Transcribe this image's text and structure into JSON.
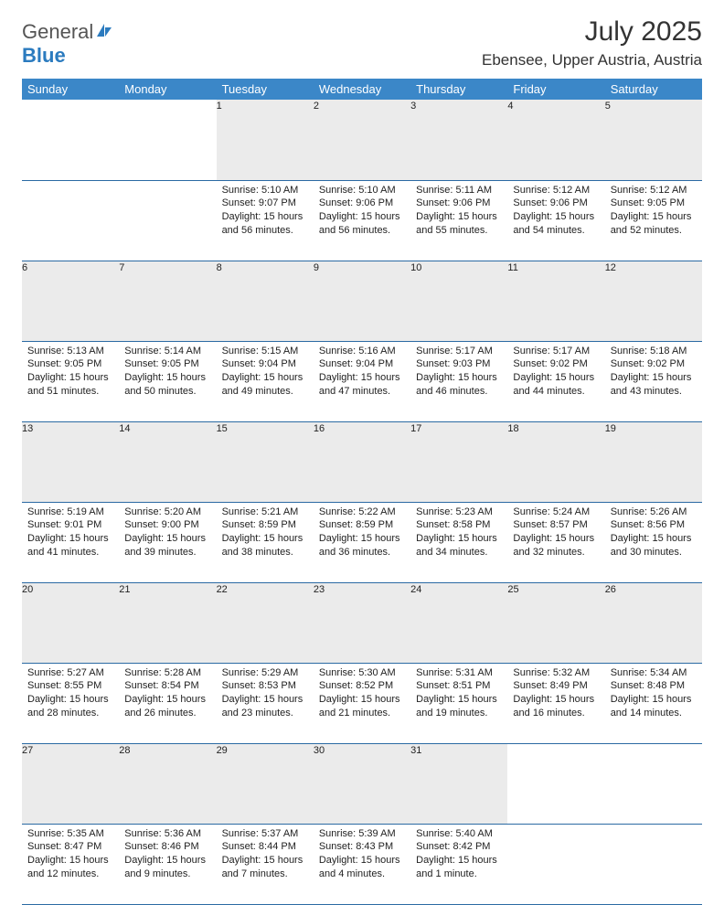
{
  "brand": {
    "name1": "General",
    "name2": "Blue"
  },
  "title": "July 2025",
  "location": "Ebensee, Upper Austria, Austria",
  "colors": {
    "header_bg": "#3b87c8",
    "header_text": "#ffffff",
    "daynum_bg": "#ebebeb",
    "rule": "#2b6aa3",
    "brand_gray": "#555555",
    "brand_blue": "#2b7bbf"
  },
  "dayNames": [
    "Sunday",
    "Monday",
    "Tuesday",
    "Wednesday",
    "Thursday",
    "Friday",
    "Saturday"
  ],
  "weeks": [
    [
      null,
      null,
      {
        "n": "1",
        "sr": "5:10 AM",
        "ss": "9:07 PM",
        "dl": "15 hours and 56 minutes."
      },
      {
        "n": "2",
        "sr": "5:10 AM",
        "ss": "9:06 PM",
        "dl": "15 hours and 56 minutes."
      },
      {
        "n": "3",
        "sr": "5:11 AM",
        "ss": "9:06 PM",
        "dl": "15 hours and 55 minutes."
      },
      {
        "n": "4",
        "sr": "5:12 AM",
        "ss": "9:06 PM",
        "dl": "15 hours and 54 minutes."
      },
      {
        "n": "5",
        "sr": "5:12 AM",
        "ss": "9:05 PM",
        "dl": "15 hours and 52 minutes."
      }
    ],
    [
      {
        "n": "6",
        "sr": "5:13 AM",
        "ss": "9:05 PM",
        "dl": "15 hours and 51 minutes."
      },
      {
        "n": "7",
        "sr": "5:14 AM",
        "ss": "9:05 PM",
        "dl": "15 hours and 50 minutes."
      },
      {
        "n": "8",
        "sr": "5:15 AM",
        "ss": "9:04 PM",
        "dl": "15 hours and 49 minutes."
      },
      {
        "n": "9",
        "sr": "5:16 AM",
        "ss": "9:04 PM",
        "dl": "15 hours and 47 minutes."
      },
      {
        "n": "10",
        "sr": "5:17 AM",
        "ss": "9:03 PM",
        "dl": "15 hours and 46 minutes."
      },
      {
        "n": "11",
        "sr": "5:17 AM",
        "ss": "9:02 PM",
        "dl": "15 hours and 44 minutes."
      },
      {
        "n": "12",
        "sr": "5:18 AM",
        "ss": "9:02 PM",
        "dl": "15 hours and 43 minutes."
      }
    ],
    [
      {
        "n": "13",
        "sr": "5:19 AM",
        "ss": "9:01 PM",
        "dl": "15 hours and 41 minutes."
      },
      {
        "n": "14",
        "sr": "5:20 AM",
        "ss": "9:00 PM",
        "dl": "15 hours and 39 minutes."
      },
      {
        "n": "15",
        "sr": "5:21 AM",
        "ss": "8:59 PM",
        "dl": "15 hours and 38 minutes."
      },
      {
        "n": "16",
        "sr": "5:22 AM",
        "ss": "8:59 PM",
        "dl": "15 hours and 36 minutes."
      },
      {
        "n": "17",
        "sr": "5:23 AM",
        "ss": "8:58 PM",
        "dl": "15 hours and 34 minutes."
      },
      {
        "n": "18",
        "sr": "5:24 AM",
        "ss": "8:57 PM",
        "dl": "15 hours and 32 minutes."
      },
      {
        "n": "19",
        "sr": "5:26 AM",
        "ss": "8:56 PM",
        "dl": "15 hours and 30 minutes."
      }
    ],
    [
      {
        "n": "20",
        "sr": "5:27 AM",
        "ss": "8:55 PM",
        "dl": "15 hours and 28 minutes."
      },
      {
        "n": "21",
        "sr": "5:28 AM",
        "ss": "8:54 PM",
        "dl": "15 hours and 26 minutes."
      },
      {
        "n": "22",
        "sr": "5:29 AM",
        "ss": "8:53 PM",
        "dl": "15 hours and 23 minutes."
      },
      {
        "n": "23",
        "sr": "5:30 AM",
        "ss": "8:52 PM",
        "dl": "15 hours and 21 minutes."
      },
      {
        "n": "24",
        "sr": "5:31 AM",
        "ss": "8:51 PM",
        "dl": "15 hours and 19 minutes."
      },
      {
        "n": "25",
        "sr": "5:32 AM",
        "ss": "8:49 PM",
        "dl": "15 hours and 16 minutes."
      },
      {
        "n": "26",
        "sr": "5:34 AM",
        "ss": "8:48 PM",
        "dl": "15 hours and 14 minutes."
      }
    ],
    [
      {
        "n": "27",
        "sr": "5:35 AM",
        "ss": "8:47 PM",
        "dl": "15 hours and 12 minutes."
      },
      {
        "n": "28",
        "sr": "5:36 AM",
        "ss": "8:46 PM",
        "dl": "15 hours and 9 minutes."
      },
      {
        "n": "29",
        "sr": "5:37 AM",
        "ss": "8:44 PM",
        "dl": "15 hours and 7 minutes."
      },
      {
        "n": "30",
        "sr": "5:39 AM",
        "ss": "8:43 PM",
        "dl": "15 hours and 4 minutes."
      },
      {
        "n": "31",
        "sr": "5:40 AM",
        "ss": "8:42 PM",
        "dl": "15 hours and 1 minute."
      },
      null,
      null
    ]
  ],
  "labels": {
    "sunrise": "Sunrise:",
    "sunset": "Sunset:",
    "daylight": "Daylight:"
  }
}
